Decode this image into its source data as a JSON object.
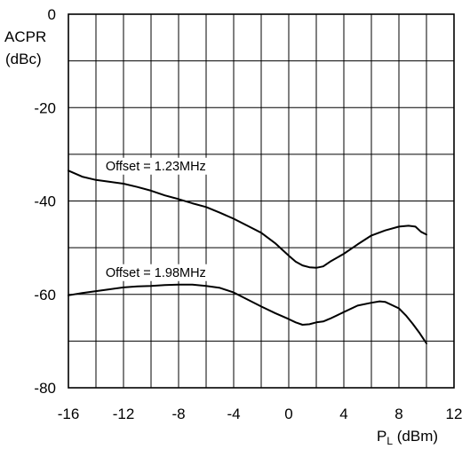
{
  "chart_data": {
    "type": "line",
    "ylabel_line1": "ACPR",
    "ylabel_line2": "(dBc)",
    "xlabel_main": "P",
    "xlabel_sub": "L",
    "xlabel_unit": " (dBm)",
    "xlim": [
      -16,
      12
    ],
    "ylim": [
      -80,
      0
    ],
    "x_ticks": [
      "-16",
      "-12",
      "-8",
      "-4",
      "0",
      "4",
      "8",
      "12"
    ],
    "y_ticks": [
      "0",
      "-20",
      "-40",
      "-60",
      "-80"
    ],
    "grid": true,
    "annotations": [
      "Offset = 1.23MHz",
      "Offset = 1.98MHz"
    ],
    "series": [
      {
        "x": [
          -16,
          -15,
          -14,
          -13,
          -12,
          -11,
          -10,
          -9,
          -8,
          -7,
          -6,
          -5,
          -4,
          -3,
          -2,
          -1,
          0,
          0.5,
          1,
          1.5,
          2,
          2.5,
          3,
          4,
          5,
          6,
          7,
          8,
          8.7,
          9.2,
          9.6,
          10
        ],
        "y": [
          -33.5,
          -34.8,
          -35.5,
          -35.9,
          -36.3,
          -37,
          -37.8,
          -38.8,
          -39.6,
          -40.5,
          -41.3,
          -42.5,
          -43.8,
          -45.3,
          -46.8,
          -49,
          -51.7,
          -53,
          -53.8,
          -54.2,
          -54.3,
          -54,
          -53,
          -51.3,
          -49.3,
          -47.4,
          -46.3,
          -45.5,
          -45.3,
          -45.5,
          -46.6,
          -47.2
        ]
      },
      {
        "x": [
          -16,
          -15,
          -14,
          -13,
          -12,
          -11,
          -10,
          -9,
          -8,
          -7,
          -6,
          -5,
          -4,
          -3,
          -2,
          -1,
          0,
          0.5,
          1,
          1.5,
          2,
          2.5,
          3,
          4,
          5,
          6,
          6.6,
          7,
          8,
          8.5,
          9,
          9.5,
          10
        ],
        "y": [
          -60.2,
          -59.7,
          -59.3,
          -58.9,
          -58.5,
          -58.3,
          -58.2,
          -58,
          -57.9,
          -57.9,
          -58.2,
          -58.6,
          -59.6,
          -61.1,
          -62.6,
          -64,
          -65.3,
          -66,
          -66.5,
          -66.4,
          -66,
          -65.8,
          -65.2,
          -63.8,
          -62.4,
          -61.8,
          -61.5,
          -61.6,
          -63,
          -64.5,
          -66.3,
          -68.3,
          -70.5
        ]
      }
    ]
  }
}
